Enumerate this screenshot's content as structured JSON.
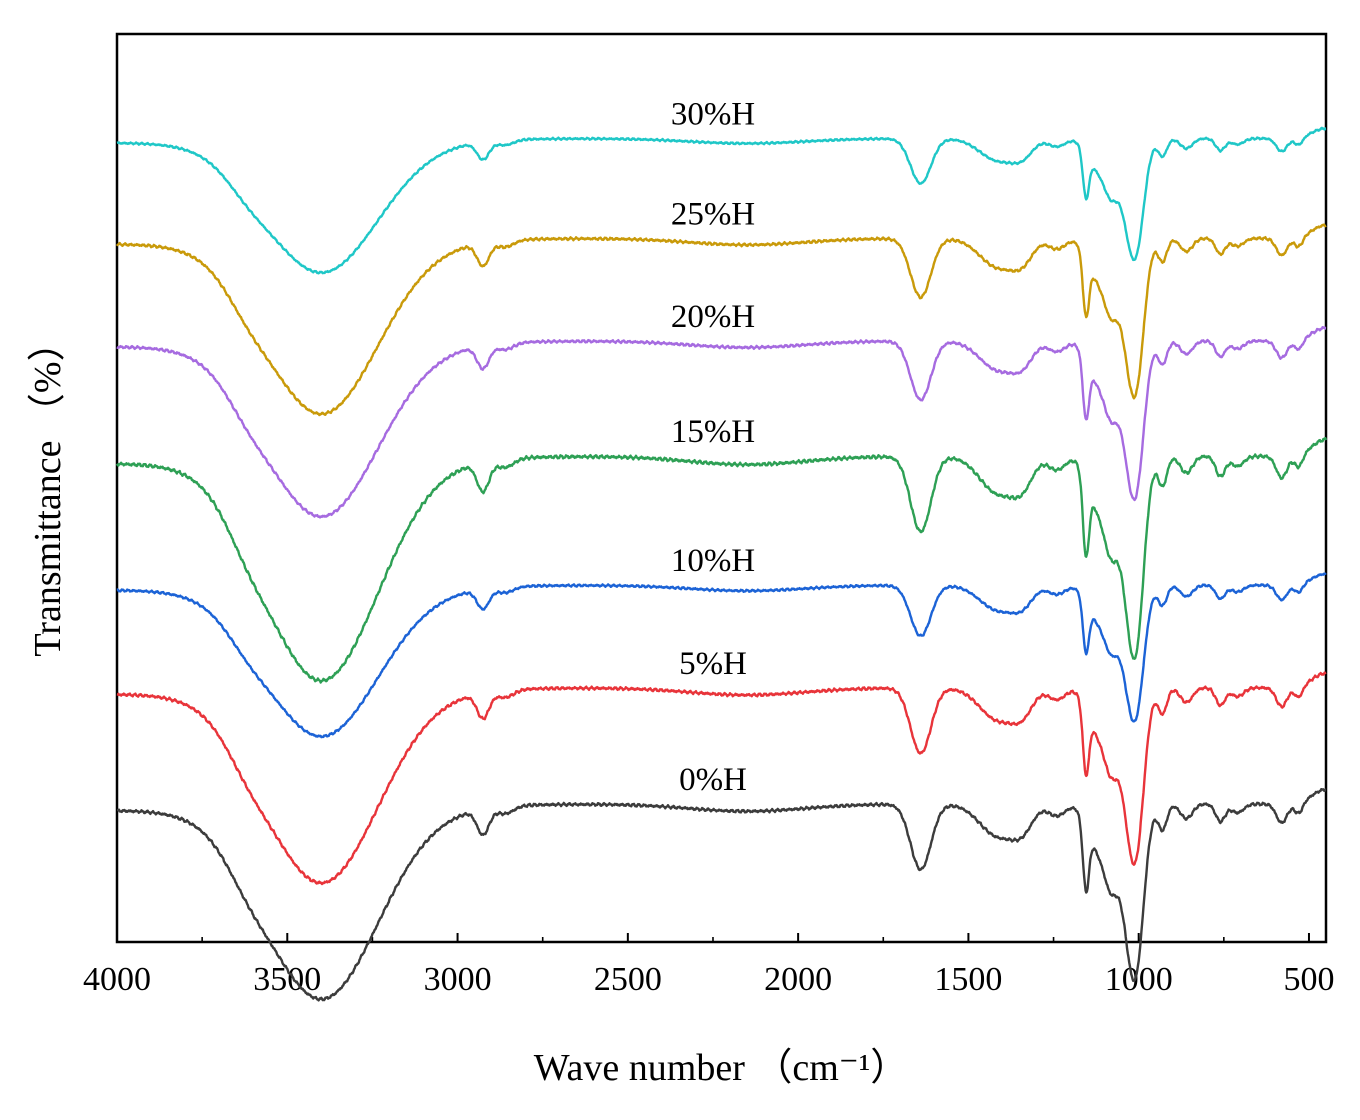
{
  "chart_data": {
    "type": "line",
    "title": "",
    "xlabel": "Wave number （cm⁻¹）",
    "ylabel": "Transmittance （%）",
    "xlim": [
      4000,
      450
    ],
    "x_reversed": true,
    "ylim": [
      0,
      100
    ],
    "y_ticks_shown": false,
    "x_ticks": [
      4000,
      3500,
      3000,
      2500,
      2000,
      1500,
      1000,
      500
    ],
    "x_tick_labels": [
      "4000",
      "3500",
      "3000",
      "2500",
      "2000",
      "1500",
      "1000",
      "500"
    ],
    "offset_stacked": true,
    "features_cm1": {
      "broad_OH_band_min": 3400,
      "CH_band": 2925,
      "band_1": 1640,
      "band_2": 1410,
      "band_3": 1155,
      "band_4": 1080,
      "band_5": 1020,
      "band_6": 930,
      "band_7": 760,
      "band_8": 580
    },
    "series": [
      {
        "name": "30%H",
        "label": "30%H",
        "color": "#1fc7c7",
        "baseline": 88.5,
        "scale": 0.55
      },
      {
        "name": "25%H",
        "label": "25%H",
        "color": "#c99a0a",
        "baseline": 77.5,
        "scale": 0.72
      },
      {
        "name": "20%H",
        "label": "20%H",
        "color": "#a66be0",
        "baseline": 66.2,
        "scale": 0.72
      },
      {
        "name": "15%H",
        "label": "15%H",
        "color": "#2ea055",
        "baseline": 53.5,
        "scale": 0.92
      },
      {
        "name": "10%H",
        "label": "10%H",
        "color": "#1c63d6",
        "baseline": 39.3,
        "scale": 0.62
      },
      {
        "name": "5%H",
        "label": "5%H",
        "color": "#e8343a",
        "baseline": 28.0,
        "scale": 0.8
      },
      {
        "name": "0%H",
        "label": "0%H",
        "color": "#3c3c3c",
        "baseline": 15.2,
        "scale": 0.8
      }
    ]
  }
}
